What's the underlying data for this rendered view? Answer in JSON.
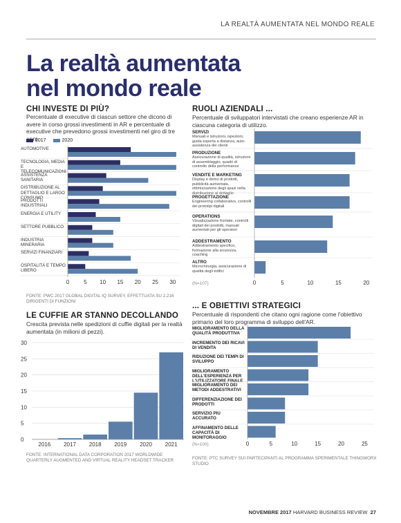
{
  "header": {
    "running_title": "LA REALTÀ AUMENTATA NEL MONDO REALE"
  },
  "title_line1": "La realtà aumentata",
  "title_line2": "nel mondo reale",
  "colors": {
    "dark": "#2c2e63",
    "mid": "#5b7fa8",
    "axis": "#999999"
  },
  "invest": {
    "heading": "CHI INVESTE DI PIÙ?",
    "subtitle": "Percentuale di executive di ciascun settore che dicono di avere in corso grossi investimenti in AR e percentuale di executive che prevedono grossi investimenti nel giro di tre anni.",
    "source": "FONTE: PWC 2017 GLOBAL DIGITAL IQ SURVEY, EFFETTUATA SU 2.216 DIRIGENTI DI FUNZIONI",
    "chart_data": {
      "type": "bar",
      "orientation": "horizontal",
      "categories": [
        "AUTOMOTIVE",
        "TECNOLOGIA, MEDIA E TELECOMUNICAZIONI",
        "ASSISTENZA SANITARIA",
        "DISTRIBUZIONE AL DETTAGLIO E LARGO CONSUMO",
        "PRODOTTI INDUSTRIALI",
        "ENERGIA E UTILITY",
        "SETTORE PUBBLICO",
        "INDUSTRIA MINERARIA",
        "SERVIZI FINANZIARI",
        "OSPITALITÀ E TEMPO LIBERO"
      ],
      "series": [
        {
          "name": "2017",
          "values": [
            18,
            15,
            11,
            10,
            9,
            8,
            7,
            7,
            6,
            5
          ]
        },
        {
          "name": "2020",
          "values": [
            31,
            31,
            23,
            31,
            29,
            15,
            13,
            13,
            18,
            20
          ]
        }
      ],
      "xlim": [
        0,
        32
      ],
      "xticks": [
        "0",
        "5",
        "10",
        "15",
        "20",
        "25",
        "30"
      ],
      "legend": "top-left"
    }
  },
  "roles": {
    "heading": "RUOLI AZIENDALI ...",
    "subtitle": "Percentuale di sviluppatori intervistati che creano esperienze AR in ciascuna categoria di utilizzo.",
    "note": "(N=107)",
    "chart_data": {
      "type": "bar",
      "orientation": "horizontal",
      "categories": [
        {
          "title": "SERVIZI",
          "desc": "Manuali e istruzioni, ispezioni, guida esperta a distanza, auto-assistenza dei clienti"
        },
        {
          "title": "PRODUZIONE",
          "desc": "Assicurazione di qualità, istruzioni di assemblaggio, quadri di controllo della performance"
        },
        {
          "title": "VENDITE E MARKETING",
          "desc": "Display e demo di prodotti, pubblicità aumentata, ottimizzazione degli spazi nella distribuzione al dettaglio"
        },
        {
          "title": "PROGETTAZIONE",
          "desc": "Engineering collaborativo, controlli dei prototipi digitali"
        },
        {
          "title": "OPERATIONS",
          "desc": "Visualizzazione frontale, controlli digitali dei prodotti, manuali aumentati per gli operatori"
        },
        {
          "title": "ADDESTRAMENTO",
          "desc": "Addestramento specifico, formazione alla sicurezza, coaching"
        },
        {
          "title": "ALTRO",
          "desc": "Microchirurgia, assicurazione di qualità degli edifici"
        }
      ],
      "values": [
        19,
        18,
        17,
        17,
        14,
        13,
        2
      ],
      "xlim": [
        0,
        21
      ],
      "xticks": [
        "0",
        "5",
        "10",
        "15",
        "20"
      ]
    }
  },
  "goals": {
    "heading": "... E OBIETTIVI STRATEGICI",
    "subtitle": "Percentuale di rispondenti che citano ogni ragione come l'obiettivo primario del loro programma di sviluppo dell'AR.",
    "note": "(N=100)",
    "source": "FONTE: PTC SURVEY SUI PARTECIPANTI AL PROGRAMMA SPERIMENTALE THINGWORX STUDIO",
    "chart_data": {
      "type": "bar",
      "orientation": "horizontal",
      "categories": [
        "MIGLIORAMENTO DELLA QUALITÀ PRODUTTIVA",
        "INCREMENTO DEI RICAVI DI VENDITA",
        "RIDUZIONE DEI TEMPI DI SVILUPPO",
        "MIGLIORAMENTO DELL'ESPERIENZA PER L'UTILIZZATORE FINALE",
        "MIGLIORAMENTO DEI METODI ADDESTRATIVI",
        "DIFFERENZIAZIONE DEI PRODOTTI",
        "SERVIZIO PIÙ ACCURATO",
        "AFFINAMENTO DELLE CAPACITÀ DI MONITORAGGIO"
      ],
      "values": [
        22,
        15,
        15,
        13,
        13,
        8,
        8,
        6
      ],
      "xlim": [
        0,
        27
      ],
      "xticks": [
        "0",
        "5",
        "10",
        "15",
        "20",
        "25"
      ]
    }
  },
  "headsets": {
    "heading": "LE CUFFIE AR STANNO DECOLLANDO",
    "subtitle": "Crescita prevista nelle spedizioni di cuffie digitali per la realtà aumentata (in milioni di pezzi).",
    "source": "FONTE: INTERNATIONAL DATA CORPORATION 2017 WORLDWIDE QUARTERLY AUGMENTED AND VIRTUAL REALITY HEADSET TRACKER",
    "chart_data": {
      "type": "bar",
      "categories": [
        "2016",
        "2017",
        "2018",
        "2019",
        "2020",
        "2021"
      ],
      "values": [
        0.1,
        0.4,
        1.5,
        5.5,
        14.5,
        27
      ],
      "ylim": [
        0,
        30
      ],
      "yticks": [
        "0",
        "5",
        "10",
        "15",
        "20",
        "25",
        "30"
      ]
    }
  },
  "footer": {
    "month": "NOVEMBRE 2017",
    "magazine": "HARVARD BUSINESS REVIEW",
    "page": "27"
  }
}
